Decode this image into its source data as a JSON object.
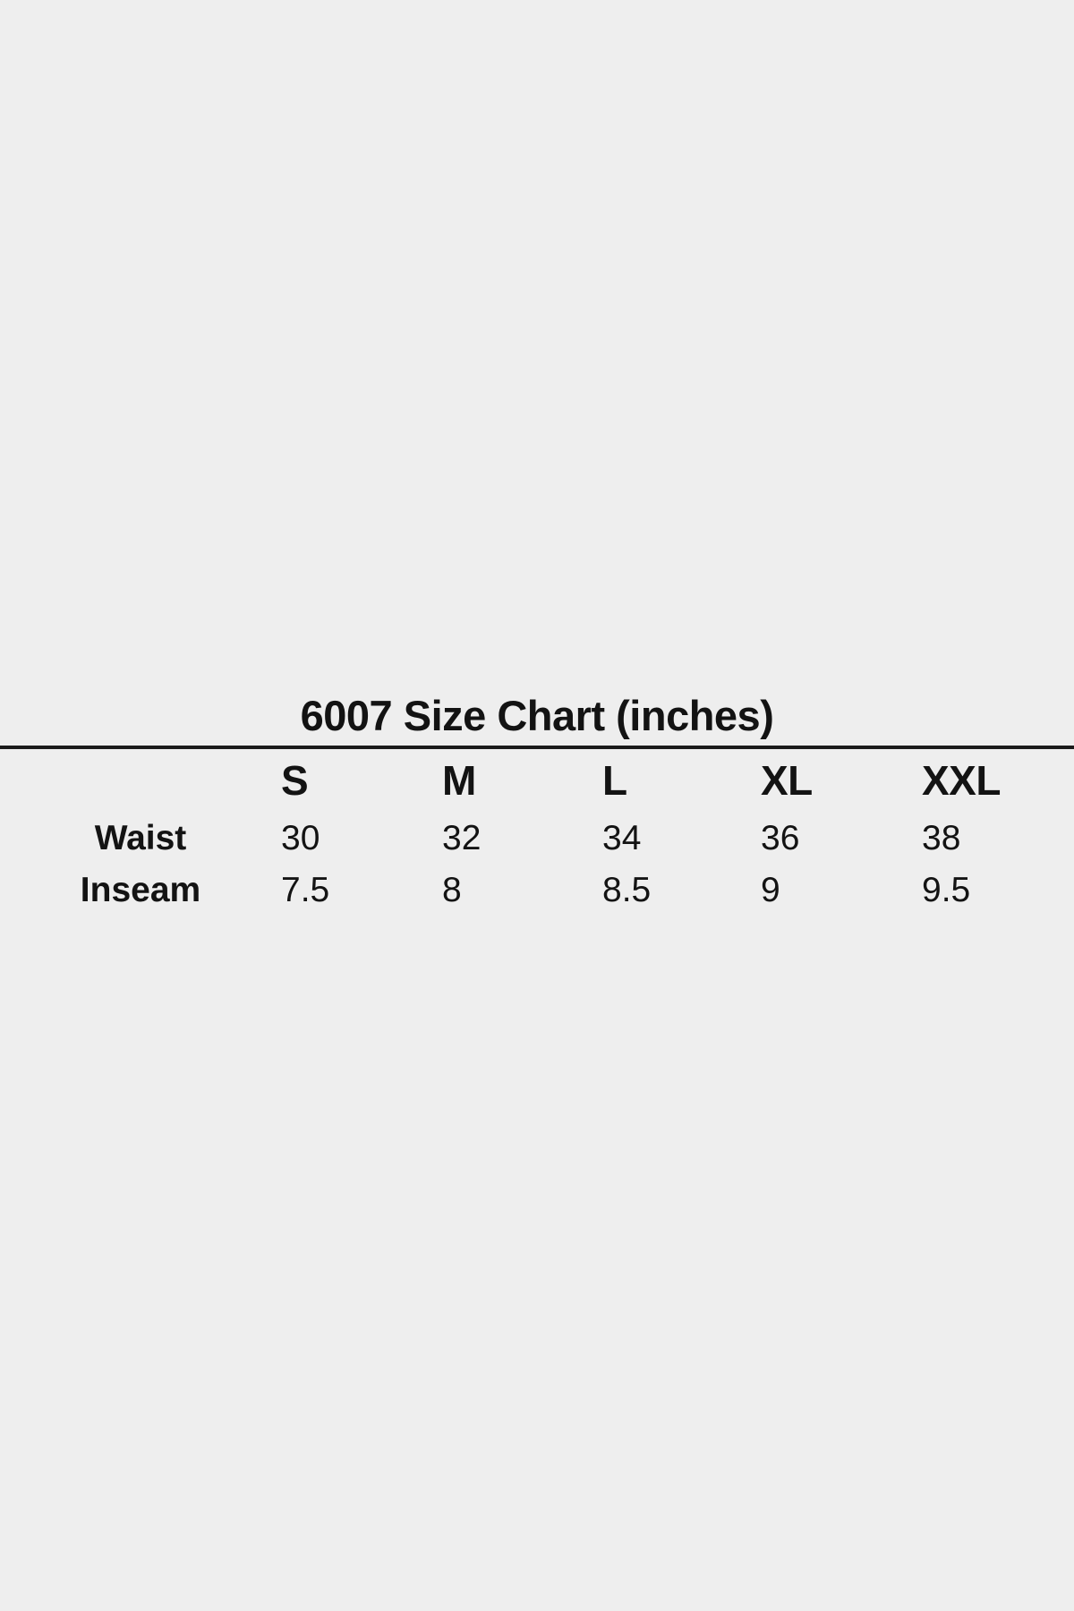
{
  "page": {
    "background_color": "#eeeeee",
    "text_color": "#131313",
    "rule_color": "#1a1a1a"
  },
  "chart_data": {
    "type": "table",
    "title": "6007 Size Chart (inches)",
    "columns": [
      "S",
      "M",
      "L",
      "XL",
      "XXL"
    ],
    "rows": [
      {
        "label": "Waist",
        "values": [
          "30",
          "32",
          "34",
          "36",
          "38"
        ]
      },
      {
        "label": "Inseam",
        "values": [
          "7.5",
          "8",
          "8.5",
          "9",
          "9.5"
        ]
      }
    ],
    "layout_hints": {
      "title_position": "top-center",
      "divider_below_title": true,
      "value_alignment": "left",
      "label_alignment": "center"
    }
  }
}
